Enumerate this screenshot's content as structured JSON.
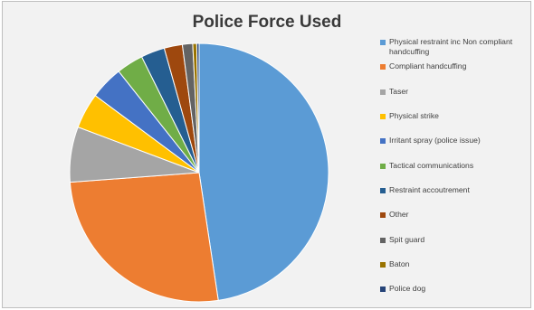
{
  "chart_data": {
    "type": "pie",
    "title": "Police Force Used",
    "legend_position": "right",
    "start_angle_deg": 0,
    "direction": "clockwise",
    "slices": [
      {
        "label": "Physical restraint inc Non compliant handcuffing",
        "value": 48.2,
        "color": "#5b9bd5"
      },
      {
        "label": "Compliant handcuffing",
        "value": 26.5,
        "color": "#ed7d31"
      },
      {
        "label": "Taser",
        "value": 7.0,
        "color": "#a5a5a5"
      },
      {
        "label": "Physical strike",
        "value": 4.5,
        "color": "#ffc000"
      },
      {
        "label": "Irritant spray (police issue)",
        "value": 4.2,
        "color": "#4472c4"
      },
      {
        "label": "Tactical communications",
        "value": 3.4,
        "color": "#70ad47"
      },
      {
        "label": "Restraint accoutrement",
        "value": 3.0,
        "color": "#255e91"
      },
      {
        "label": "Other",
        "value": 2.3,
        "color": "#9e480e"
      },
      {
        "label": "Spit guard",
        "value": 1.3,
        "color": "#636363"
      },
      {
        "label": "Baton",
        "value": 0.5,
        "color": "#997300"
      },
      {
        "label": "Police dog",
        "value": 0.3,
        "color": "#264478"
      }
    ]
  }
}
